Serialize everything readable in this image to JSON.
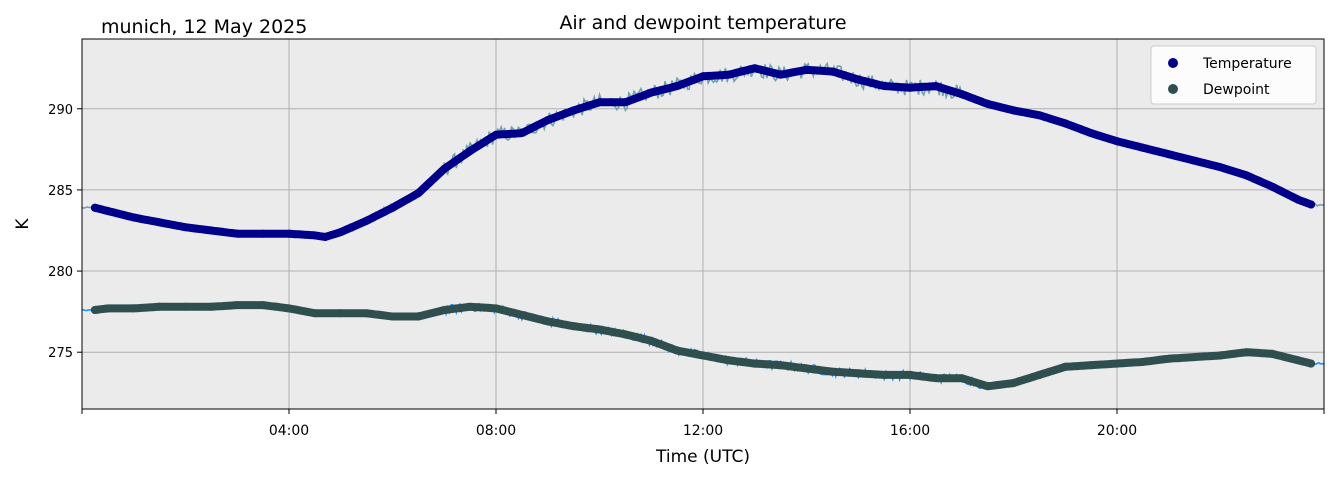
{
  "location_date": "munich, 12 May 2025",
  "chart_data": {
    "type": "line",
    "title": "Air and dewpoint temperature",
    "xlabel": "Time (UTC)",
    "ylabel": "K",
    "xlim": [
      0,
      24
    ],
    "ylim": [
      271.5,
      294.3
    ],
    "x_ticks": [
      {
        "value": 4,
        "label": "04:00"
      },
      {
        "value": 8,
        "label": "08:00"
      },
      {
        "value": 12,
        "label": "12:00"
      },
      {
        "value": 16,
        "label": "16:00"
      },
      {
        "value": 20,
        "label": "20:00"
      }
    ],
    "y_ticks": [
      {
        "value": 275,
        "label": "275"
      },
      {
        "value": 280,
        "label": "280"
      },
      {
        "value": 285,
        "label": "285"
      },
      {
        "value": 290,
        "label": "290"
      }
    ],
    "grid": true,
    "legend_position": "top-right",
    "background_color": "#ebebeb",
    "series": [
      {
        "name": "Temperature",
        "marker_color": "#00008b",
        "raw_color": "#6fa3a8",
        "x": [
          0.25,
          0.5,
          1.0,
          1.5,
          2.0,
          2.5,
          3.0,
          3.5,
          4.0,
          4.5,
          4.7,
          5.0,
          5.5,
          6.0,
          6.5,
          7.0,
          7.5,
          8.0,
          8.5,
          9.0,
          9.5,
          10.0,
          10.5,
          11.0,
          11.5,
          12.0,
          12.5,
          13.0,
          13.5,
          14.0,
          14.5,
          15.0,
          15.5,
          16.0,
          16.5,
          17.0,
          17.5,
          18.0,
          18.5,
          19.0,
          19.5,
          20.0,
          20.5,
          21.0,
          21.5,
          22.0,
          22.5,
          23.0,
          23.5,
          23.75
        ],
        "y": [
          283.9,
          283.7,
          283.3,
          283.0,
          282.7,
          282.5,
          282.3,
          282.3,
          282.3,
          282.2,
          282.1,
          282.4,
          283.1,
          283.9,
          284.8,
          286.3,
          287.4,
          288.4,
          288.5,
          289.3,
          289.9,
          290.4,
          290.4,
          291.0,
          291.4,
          292.0,
          292.1,
          292.5,
          292.1,
          292.4,
          292.3,
          291.8,
          291.4,
          291.3,
          291.4,
          290.9,
          290.3,
          289.9,
          289.6,
          289.1,
          288.5,
          288.0,
          287.6,
          287.2,
          286.8,
          286.4,
          285.9,
          285.2,
          284.4,
          284.1
        ]
      },
      {
        "name": "Dewpoint",
        "marker_color": "#2f4f4f",
        "raw_color": "#1e90ff",
        "x": [
          0.25,
          0.5,
          1.0,
          1.5,
          2.0,
          2.5,
          3.0,
          3.5,
          4.0,
          4.5,
          5.0,
          5.5,
          6.0,
          6.5,
          7.0,
          7.5,
          8.0,
          8.5,
          9.0,
          9.5,
          10.0,
          10.5,
          11.0,
          11.5,
          12.0,
          12.5,
          13.0,
          13.5,
          14.0,
          14.5,
          15.0,
          15.5,
          16.0,
          16.5,
          17.0,
          17.5,
          18.0,
          18.5,
          19.0,
          19.5,
          20.0,
          20.5,
          21.0,
          21.5,
          22.0,
          22.5,
          23.0,
          23.5,
          23.75
        ],
        "y": [
          277.6,
          277.7,
          277.7,
          277.8,
          277.8,
          277.8,
          277.9,
          277.9,
          277.7,
          277.4,
          277.4,
          277.4,
          277.2,
          277.2,
          277.6,
          277.8,
          277.7,
          277.3,
          276.9,
          276.6,
          276.4,
          276.1,
          275.7,
          275.1,
          274.8,
          274.5,
          274.3,
          274.2,
          274.0,
          273.8,
          273.7,
          273.6,
          273.6,
          273.4,
          273.4,
          272.9,
          273.1,
          273.6,
          274.1,
          274.2,
          274.3,
          274.4,
          274.6,
          274.7,
          274.8,
          275.0,
          274.9,
          274.5,
          274.3
        ]
      }
    ]
  }
}
